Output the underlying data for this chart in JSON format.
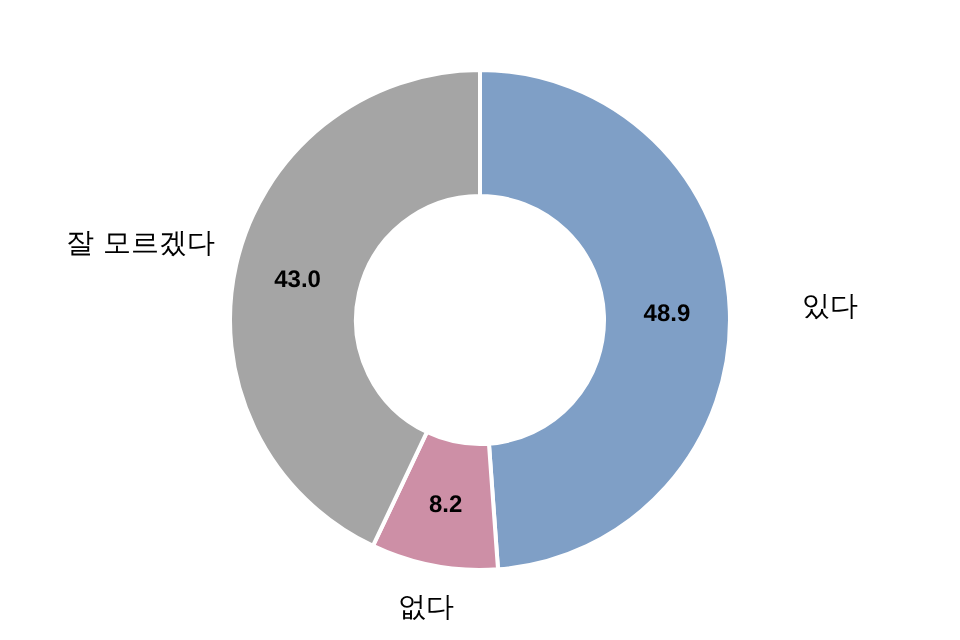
{
  "chart_data": {
    "type": "donut",
    "categories": [
      "있다",
      "없다",
      "잘 모르겠다"
    ],
    "values": [
      48.9,
      8.2,
      43.0
    ],
    "value_labels": [
      "48.9",
      "8.2",
      "43.0"
    ],
    "colors": [
      "#7f9fc6",
      "#cd8fa6",
      "#a5a5a5"
    ]
  }
}
